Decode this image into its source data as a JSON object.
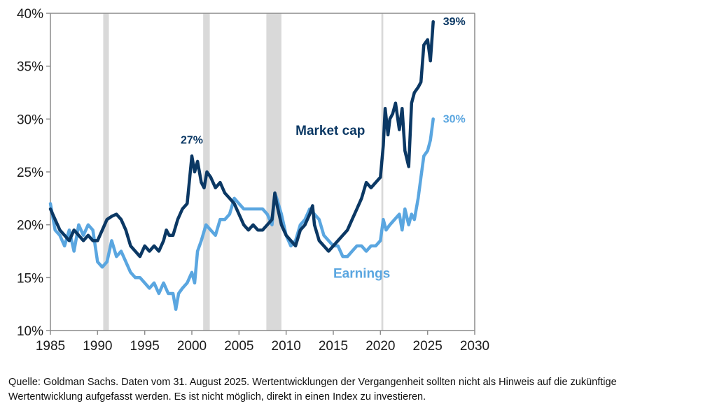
{
  "chart_data": {
    "type": "line",
    "title": "",
    "xlabel": "",
    "ylabel": "",
    "xlim": [
      1985,
      2030
    ],
    "ylim": [
      10,
      40
    ],
    "x_ticks": [
      1985,
      1990,
      1995,
      2000,
      2005,
      2010,
      2015,
      2020,
      2025,
      2030
    ],
    "x_tick_labels": [
      "1985",
      "1990",
      "1995",
      "2000",
      "2005",
      "2010",
      "2015",
      "2020",
      "2025",
      "2030"
    ],
    "y_ticks": [
      10,
      15,
      20,
      25,
      30,
      35,
      40
    ],
    "y_tick_labels": [
      "10%",
      "15%",
      "20%",
      "25%",
      "30%",
      "35%",
      "40%"
    ],
    "grid": false,
    "recession_bands": [
      {
        "start": 1990.6,
        "end": 1991.2
      },
      {
        "start": 2001.2,
        "end": 2001.9
      },
      {
        "start": 2007.9,
        "end": 2009.5
      },
      {
        "start": 2020.1,
        "end": 2020.3
      }
    ],
    "series": [
      {
        "name": "Market cap",
        "label": "Market cap",
        "color": "#0b3864",
        "end_label": "39%",
        "peak_label": "27%",
        "peak_label_at": [
          2000.0,
          27
        ],
        "x": [
          1985.0,
          1985.5,
          1986.0,
          1986.5,
          1987.0,
          1987.5,
          1988.0,
          1988.5,
          1989.0,
          1989.5,
          1990.0,
          1990.5,
          1991.0,
          1991.5,
          1992.0,
          1992.5,
          1993.0,
          1993.5,
          1994.0,
          1994.5,
          1995.0,
          1995.5,
          1996.0,
          1996.5,
          1997.0,
          1997.3,
          1997.6,
          1998.0,
          1998.5,
          1999.0,
          1999.5,
          2000.0,
          2000.3,
          2000.6,
          2001.0,
          2001.3,
          2001.6,
          2002.0,
          2002.5,
          2003.0,
          2003.5,
          2004.0,
          2004.5,
          2005.0,
          2005.5,
          2006.0,
          2006.5,
          2007.0,
          2007.5,
          2008.0,
          2008.5,
          2008.8,
          2009.0,
          2009.5,
          2010.0,
          2010.5,
          2011.0,
          2011.5,
          2012.0,
          2012.5,
          2012.8,
          2013.0,
          2013.5,
          2014.0,
          2014.5,
          2015.0,
          2015.5,
          2016.0,
          2016.5,
          2017.0,
          2017.5,
          2018.0,
          2018.5,
          2019.0,
          2019.5,
          2020.0,
          2020.3,
          2020.5,
          2020.8,
          2021.0,
          2021.3,
          2021.6,
          2022.0,
          2022.3,
          2022.6,
          2023.0,
          2023.3,
          2023.6,
          2024.0,
          2024.3,
          2024.6,
          2025.0,
          2025.3,
          2025.6
        ],
        "values": [
          21.5,
          20.5,
          19.5,
          19.0,
          18.5,
          19.5,
          19.0,
          18.5,
          19.0,
          18.5,
          18.5,
          19.5,
          20.5,
          20.8,
          21.0,
          20.5,
          19.5,
          18.0,
          17.5,
          17.0,
          18.0,
          17.5,
          18.0,
          17.5,
          18.5,
          19.5,
          19.0,
          19.0,
          20.5,
          21.5,
          22.0,
          26.5,
          25.0,
          26.0,
          24.0,
          23.5,
          25.0,
          24.5,
          23.5,
          24.0,
          23.0,
          22.5,
          22.0,
          21.0,
          20.0,
          19.5,
          20.0,
          19.5,
          19.5,
          20.0,
          20.5,
          23.0,
          22.0,
          20.0,
          19.0,
          18.5,
          18.0,
          19.5,
          20.0,
          21.0,
          21.8,
          20.0,
          18.5,
          18.0,
          17.5,
          18.0,
          18.5,
          19.0,
          19.5,
          20.5,
          21.5,
          22.5,
          24.0,
          23.5,
          24.0,
          24.5,
          27.5,
          31.0,
          28.5,
          30.0,
          30.5,
          31.5,
          29.0,
          31.0,
          27.0,
          25.5,
          31.5,
          32.5,
          33.0,
          33.5,
          37.0,
          37.5,
          35.5,
          39.2
        ]
      },
      {
        "name": "Earnings",
        "label": "Earnings",
        "color": "#5aa6e0",
        "end_label": "30%",
        "x": [
          1985.0,
          1985.5,
          1986.0,
          1986.5,
          1987.0,
          1987.5,
          1988.0,
          1988.5,
          1989.0,
          1989.5,
          1990.0,
          1990.5,
          1991.0,
          1991.5,
          1992.0,
          1992.5,
          1993.0,
          1993.5,
          1994.0,
          1994.5,
          1995.0,
          1995.5,
          1996.0,
          1996.5,
          1997.0,
          1997.5,
          1998.0,
          1998.3,
          1998.6,
          1999.0,
          1999.5,
          2000.0,
          2000.3,
          2000.6,
          2001.0,
          2001.5,
          2002.0,
          2002.5,
          2003.0,
          2003.5,
          2004.0,
          2004.5,
          2005.0,
          2005.5,
          2006.0,
          2006.5,
          2007.0,
          2007.5,
          2008.0,
          2008.5,
          2008.8,
          2009.0,
          2009.5,
          2010.0,
          2010.5,
          2011.0,
          2011.5,
          2012.0,
          2012.5,
          2013.0,
          2013.5,
          2014.0,
          2014.5,
          2015.0,
          2015.5,
          2016.0,
          2016.5,
          2017.0,
          2017.5,
          2018.0,
          2018.5,
          2019.0,
          2019.5,
          2020.0,
          2020.3,
          2020.6,
          2021.0,
          2021.5,
          2022.0,
          2022.3,
          2022.6,
          2023.0,
          2023.3,
          2023.6,
          2024.0,
          2024.3,
          2024.6,
          2025.0,
          2025.3,
          2025.6
        ],
        "values": [
          22.0,
          19.5,
          19.0,
          18.0,
          19.5,
          17.5,
          20.0,
          19.0,
          20.0,
          19.5,
          16.5,
          16.0,
          16.5,
          18.5,
          17.0,
          17.5,
          16.5,
          15.5,
          15.0,
          15.0,
          14.5,
          14.0,
          14.5,
          13.5,
          14.5,
          13.5,
          13.5,
          12.0,
          13.5,
          14.0,
          14.5,
          15.5,
          14.5,
          17.5,
          18.5,
          20.0,
          19.5,
          19.0,
          20.5,
          20.5,
          21.0,
          22.5,
          22.0,
          21.5,
          21.5,
          21.5,
          21.5,
          21.5,
          21.0,
          20.0,
          23.0,
          22.5,
          21.0,
          19.0,
          18.0,
          18.5,
          20.0,
          20.5,
          21.5,
          21.0,
          20.5,
          19.0,
          18.5,
          18.0,
          18.0,
          17.0,
          17.0,
          17.5,
          18.0,
          18.0,
          17.5,
          18.0,
          18.0,
          18.5,
          20.5,
          19.5,
          20.0,
          20.5,
          21.0,
          19.5,
          21.5,
          20.0,
          21.0,
          20.5,
          22.5,
          24.5,
          26.5,
          27.0,
          28.0,
          30.0
        ]
      }
    ],
    "annotations": [
      {
        "text": "Market cap",
        "series": "Market cap",
        "at": [
          2011.0,
          28.5
        ]
      },
      {
        "text": "Earnings",
        "series": "Earnings",
        "at": [
          2015.0,
          15.0
        ]
      }
    ],
    "legend": "inline labels"
  },
  "footnote": {
    "line1": "Quelle: Goldman Sachs. Daten vom 31. August 2025. Wertentwicklungen der Vergangenheit sollten nicht als Hinweis auf die zukünftige",
    "line2": "Wertentwicklung aufgefasst werden. Es ist nicht möglich, direkt in einen Index zu investieren."
  }
}
